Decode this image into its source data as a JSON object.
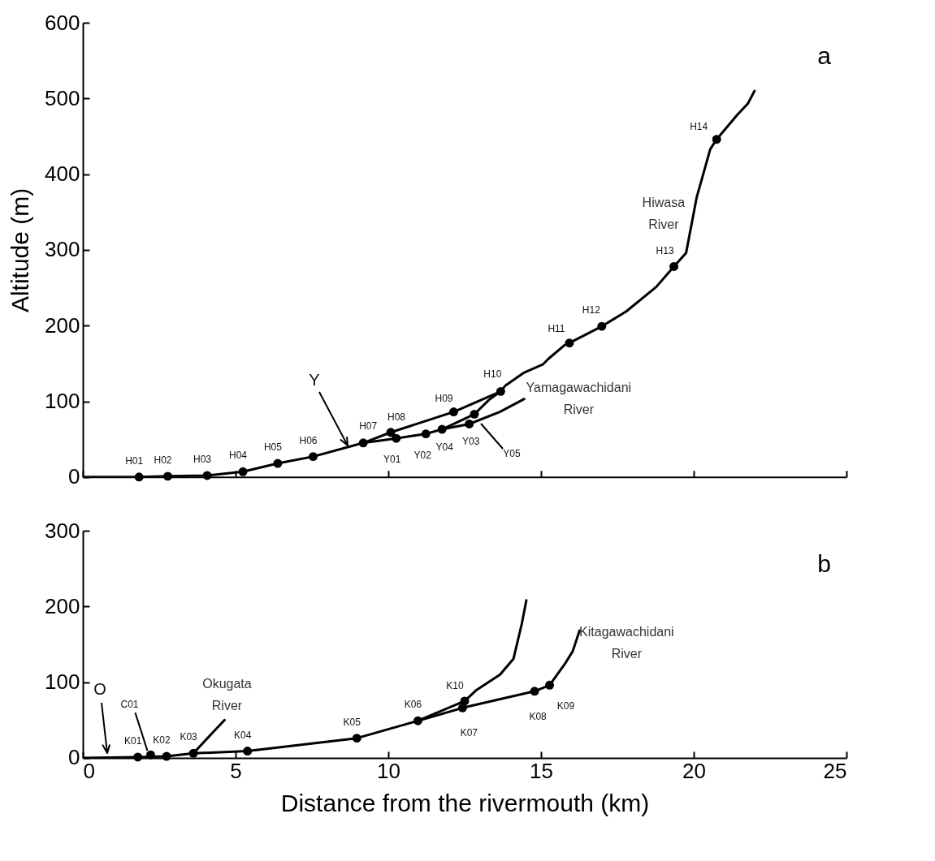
{
  "chart_data": [
    {
      "type": "line",
      "title": "a",
      "ylabel": "Altitude (m)",
      "xlim": [
        0,
        25
      ],
      "xticks": [
        0,
        5,
        10,
        15,
        20,
        25
      ],
      "ylim": [
        0,
        600
      ],
      "yticks": [
        0,
        100,
        200,
        300,
        400,
        500,
        600
      ],
      "tick_labels": "y",
      "grid": false,
      "line_style": "solid",
      "series": [
        {
          "name": "Hiwasa River",
          "color": "#000000",
          "x": [
            0,
            1.84,
            2.78,
            4.07,
            5.24,
            6.38,
            7.54,
            9.18,
            10.08,
            12.14,
            13.68,
            13.84,
            14.45,
            15.07,
            15.24,
            15.77,
            15.93,
            16.99,
            17.8,
            18.77,
            19.35,
            19.75,
            20.1,
            20.27,
            20.54,
            20.75,
            21.42,
            21.77,
            21.99
          ],
          "values": [
            0,
            0,
            1,
            2,
            7,
            18,
            27,
            45,
            59,
            86,
            113,
            121,
            138,
            149,
            156,
            174,
            177,
            199,
            219,
            251,
            278,
            296,
            370,
            394,
            433,
            446,
            478,
            493,
            510
          ]
        },
        {
          "name": "Yamagawachidani River",
          "color": "#000000",
          "x": [
            9.18,
            10.26,
            11.23,
            11.76,
            12.65,
            13.65,
            14.45
          ],
          "values": [
            45,
            51,
            57,
            63,
            70,
            86,
            103
          ]
        },
        {
          "color": "#000000",
          "x": [
            11.76,
            12.82,
            13.3,
            13.68
          ],
          "values": [
            63,
            83,
            102,
            113
          ]
        },
        {
          "type": "scatter",
          "marker": "circle",
          "color": "#000000",
          "x": [
            1.84,
            2.78,
            4.07,
            5.24,
            6.38,
            7.54,
            9.18,
            10.08,
            12.14,
            13.68,
            15.93,
            16.99,
            19.35,
            20.75,
            10.26,
            11.23,
            12.65,
            11.76,
            12.82
          ],
          "values": [
            0,
            1,
            2,
            7,
            18,
            27,
            45,
            59,
            86,
            113,
            177,
            199,
            278,
            446,
            51,
            57,
            70,
            63,
            83
          ]
        }
      ],
      "annotations": [
        {
          "text": "H01",
          "x": 1.84,
          "y": 0
        },
        {
          "text": "H02",
          "x": 2.78,
          "y": 1
        },
        {
          "text": "H03",
          "x": 4.07,
          "y": 2
        },
        {
          "text": "H04",
          "x": 5.24,
          "y": 7
        },
        {
          "text": "H05",
          "x": 6.38,
          "y": 18
        },
        {
          "text": "H06",
          "x": 7.54,
          "y": 27
        },
        {
          "text": "H07",
          "x": 9.18,
          "y": 45
        },
        {
          "text": "H08",
          "x": 10.08,
          "y": 59
        },
        {
          "text": "H09",
          "x": 12.14,
          "y": 86
        },
        {
          "text": "H10",
          "x": 13.68,
          "y": 113
        },
        {
          "text": "H11",
          "x": 15.93,
          "y": 177
        },
        {
          "text": "H12",
          "x": 16.99,
          "y": 199
        },
        {
          "text": "H13",
          "x": 19.35,
          "y": 278
        },
        {
          "text": "H14",
          "x": 20.75,
          "y": 446
        },
        {
          "text": "Y01",
          "x": 10.26,
          "y": 51
        },
        {
          "text": "Y02",
          "x": 11.23,
          "y": 57
        },
        {
          "text": "Y03",
          "x": 12.65,
          "y": 70
        },
        {
          "text": "Y04",
          "x": 11.76,
          "y": 63
        },
        "Y05",
        "Y"
      ]
    },
    {
      "type": "line",
      "title": "b",
      "xlabel": "Distance from the rivermouth (km)",
      "xlim": [
        0,
        25
      ],
      "xticks": [
        0,
        5,
        10,
        15,
        20,
        25
      ],
      "ylim": [
        0,
        300
      ],
      "yticks": [
        0,
        100,
        200,
        300
      ],
      "grid": false,
      "line_style": "solid",
      "series": [
        {
          "name": "Kitagawachidani River",
          "color": "#000000",
          "x": [
            0,
            1.8,
            2.74,
            3.62,
            5.39,
            8.97,
            10.97,
            12.43,
            14.79,
            15.28,
            15.78,
            16.04,
            16.26
          ],
          "values": [
            0,
            1,
            2,
            6,
            9,
            26,
            49,
            66,
            88,
            96,
            124,
            141,
            168
          ]
        },
        {
          "name": "Okugata River",
          "color": "#000000",
          "x": [
            3.62,
            4.22,
            4.64
          ],
          "values": [
            6,
            32,
            50
          ]
        },
        {
          "color": "#000000",
          "x": [
            10.97,
            12.5,
            12.87,
            13.66,
            14.1,
            14.37,
            14.52
          ],
          "values": [
            49,
            75,
            89,
            110,
            131,
            177,
            208
          ]
        },
        {
          "type": "scatter",
          "marker": "circle",
          "color": "#000000",
          "x": [
            1.8,
            2.74,
            3.62,
            5.39,
            8.97,
            10.97,
            12.43,
            14.79,
            15.28,
            12.5,
            2.22
          ],
          "values": [
            1,
            2,
            6,
            9,
            26,
            49,
            66,
            88,
            96,
            75,
            4
          ]
        }
      ],
      "annotations": [
        {
          "text": "K01",
          "x": 1.8,
          "y": 1
        },
        {
          "text": "K02",
          "x": 2.74,
          "y": 2
        },
        {
          "text": "K03",
          "x": 3.62,
          "y": 6
        },
        {
          "text": "K04",
          "x": 5.39,
          "y": 9
        },
        {
          "text": "K05",
          "x": 8.97,
          "y": 26
        },
        {
          "text": "K06",
          "x": 10.97,
          "y": 49
        },
        {
          "text": "K07",
          "x": 12.43,
          "y": 66
        },
        {
          "text": "K08",
          "x": 14.79,
          "y": 88
        },
        {
          "text": "K09",
          "x": 15.28,
          "y": 96
        },
        {
          "text": "K10",
          "x": 12.5,
          "y": 75
        },
        {
          "text": "C01",
          "x": 2.22,
          "y": 4
        },
        "O"
      ]
    }
  ]
}
